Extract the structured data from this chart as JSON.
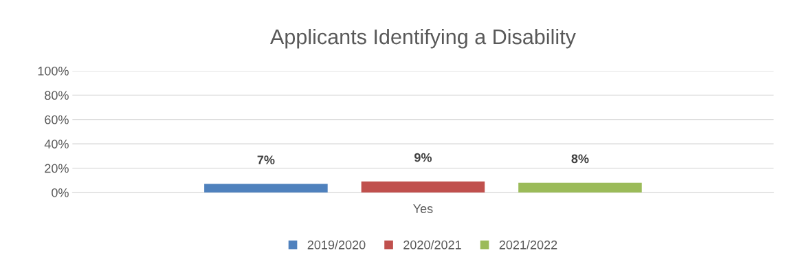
{
  "chart_data": {
    "type": "bar",
    "title": "Applicants Identifying a Disability",
    "categories": [
      "Yes"
    ],
    "series": [
      {
        "name": "2019/2020",
        "color": "#4f81bd",
        "values": [
          7
        ],
        "value_labels": [
          "7%"
        ]
      },
      {
        "name": "2020/2021",
        "color": "#c0504d",
        "values": [
          9
        ],
        "value_labels": [
          "9%"
        ]
      },
      {
        "name": "2021/2022",
        "color": "#9bbb59",
        "values": [
          8
        ],
        "value_labels": [
          "8%"
        ]
      }
    ],
    "ylim": [
      0,
      100
    ],
    "yticks": [
      {
        "value": 0,
        "label": "0%"
      },
      {
        "value": 20,
        "label": "20%"
      },
      {
        "value": 40,
        "label": "40%"
      },
      {
        "value": 60,
        "label": "60%"
      },
      {
        "value": 80,
        "label": "80%"
      },
      {
        "value": 100,
        "label": "100%"
      }
    ],
    "grid": "y",
    "legend": "bottom"
  }
}
